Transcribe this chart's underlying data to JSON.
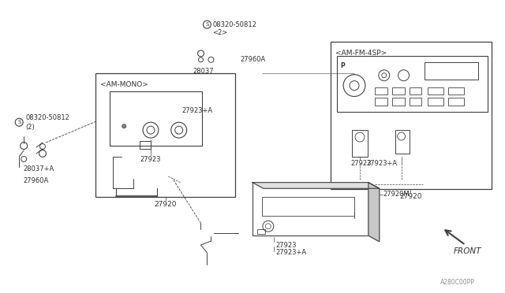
{
  "bg_color": "#ffffff",
  "fig_width": 6.4,
  "fig_height": 3.72,
  "watermark": "A280C00PP",
  "lc": "#404040",
  "tc": "#303030",
  "labels": {
    "screw_top": "08320-50812",
    "screw_top2": "<2>",
    "screw_left": "08320-50812",
    "screw_left2": "(2)",
    "am_mono": "<AM-MONO>",
    "am_fm_4sp": "<AM-FM-4SP>",
    "p27960A_top": "27960A",
    "p28037_top": "28037",
    "p27923_mono": "27923",
    "p27923A_mono": "27923+A",
    "p27920_mono": "27920",
    "p27923_fm": "27923",
    "p27923A_fm": "27923+A",
    "p27920_fm": "27920",
    "p28037A": "28037+A",
    "p27960A_left": "27960A",
    "p27920M": "27920M",
    "p27923_bot": "27923",
    "p27923A_bot": "27923+A",
    "front": "FRONT"
  }
}
